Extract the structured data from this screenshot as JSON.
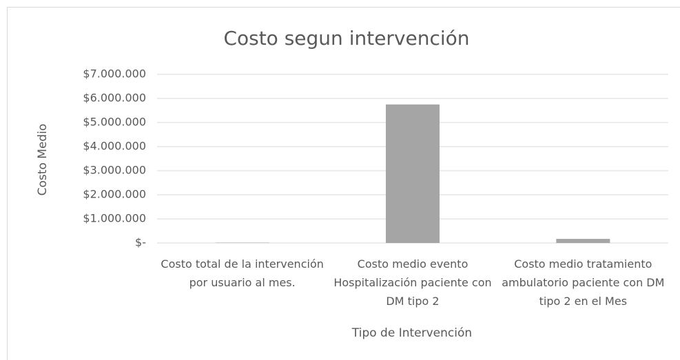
{
  "chart_data": {
    "type": "bar",
    "title": "Costo segun intervención",
    "x_label": "Tipo de Intervención",
    "y_label": "Costo Medio",
    "categories": [
      "Costo total de la intervención por usuario al mes.",
      "Costo medio evento Hospitalización paciente con DM tipo 2",
      "Costo medio tratamiento ambulatorio paciente con DM tipo 2 en el Mes"
    ],
    "values": [
      15000,
      5750000,
      170000
    ],
    "color": "#a5a5a5",
    "ylim": [
      0,
      7000000
    ],
    "yticks": [
      {
        "value": 0,
        "label": "$-"
      },
      {
        "value": 1000000,
        "label": "$1.000.000"
      },
      {
        "value": 2000000,
        "label": "$2.000.000"
      },
      {
        "value": 3000000,
        "label": "$3.000.000"
      },
      {
        "value": 4000000,
        "label": "$4.000.000"
      },
      {
        "value": 5000000,
        "label": "$5.000.000"
      },
      {
        "value": 6000000,
        "label": "$6.000.000"
      },
      {
        "value": 7000000,
        "label": "$7.000.000"
      }
    ],
    "grid": true
  }
}
